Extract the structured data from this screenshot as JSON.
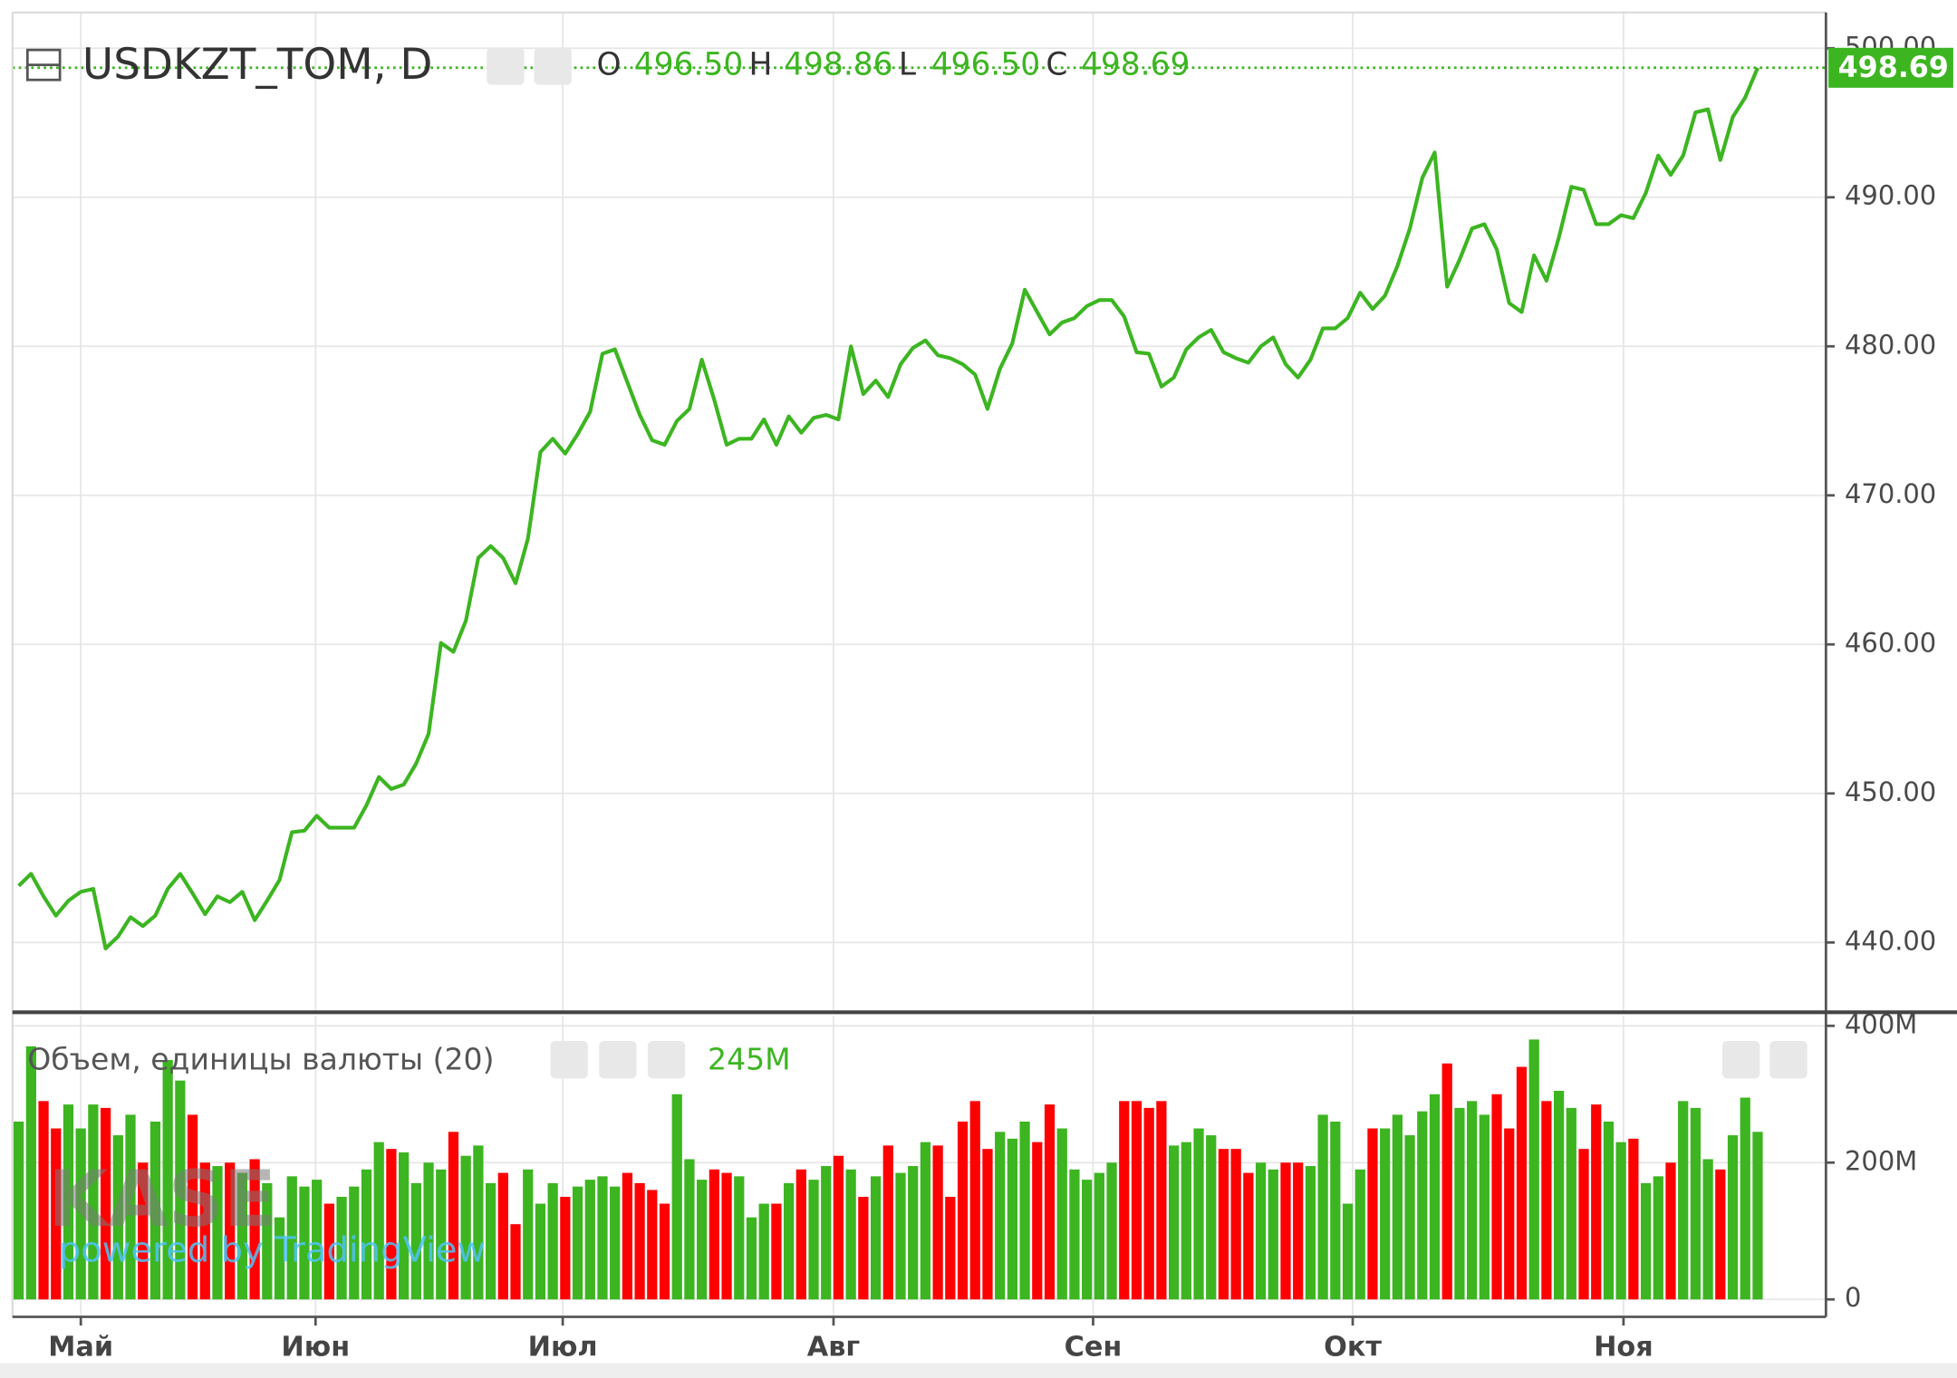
{
  "chart_data": [
    {
      "type": "line",
      "title": "USDKZT_TOM, D",
      "ohlc": [
        {
          "label": "O",
          "value": "496.50"
        },
        {
          "label": "H",
          "value": "498.86"
        },
        {
          "label": "L",
          "value": "496.50"
        },
        {
          "label": "C",
          "value": "498.69"
        }
      ],
      "watermark": "KASE",
      "watermark_sub": "powered by TradingView",
      "color": "#3cb521",
      "values": [
        443.8,
        444.6,
        443.1,
        441.8,
        442.8,
        443.4,
        443.6,
        439.6,
        440.4,
        441.7,
        441.1,
        441.8,
        443.6,
        444.6,
        443.3,
        441.9,
        443.1,
        442.7,
        443.4,
        441.5,
        442.8,
        444.2,
        447.4,
        447.5,
        448.5,
        447.7,
        447.7,
        447.7,
        449.2,
        451.1,
        450.3,
        450.6,
        452.0,
        454.0,
        460.1,
        459.5,
        461.6,
        465.8,
        466.6,
        465.8,
        464.1,
        467.1,
        472.9,
        473.8,
        472.8,
        474.1,
        475.6,
        479.5,
        479.8,
        477.6,
        475.4,
        473.7,
        473.4,
        475.0,
        475.8,
        479.1,
        476.4,
        473.4,
        473.8,
        473.8,
        475.1,
        473.4,
        475.3,
        474.2,
        475.2,
        475.4,
        475.1,
        480.0,
        476.8,
        477.7,
        476.6,
        478.8,
        479.9,
        480.4,
        479.4,
        479.2,
        478.8,
        478.1,
        475.8,
        478.5,
        480.2,
        483.8,
        482.3,
        480.8,
        481.6,
        481.9,
        482.7,
        483.1,
        483.1,
        482.0,
        479.6,
        479.5,
        477.3,
        477.9,
        479.8,
        480.6,
        481.1,
        479.6,
        479.2,
        478.9,
        480.0,
        480.6,
        478.8,
        477.9,
        479.1,
        481.2,
        481.2,
        481.9,
        483.6,
        482.5,
        483.4,
        485.4,
        487.9,
        491.3,
        493.0,
        484.0,
        485.8,
        487.9,
        488.2,
        486.5,
        482.9,
        482.3,
        486.1,
        484.4,
        487.3,
        490.7,
        490.5,
        488.2,
        488.2,
        488.8,
        488.6,
        490.3,
        492.8,
        491.5,
        492.8,
        495.7,
        495.9,
        492.5,
        495.4,
        496.7,
        498.69
      ],
      "xlim": [
        -0.5,
        145.5
      ],
      "xticks": [
        {
          "value": 5.0,
          "label": "Май"
        },
        {
          "value": 23.9,
          "label": "Июн"
        },
        {
          "value": 43.8,
          "label": "Июл"
        },
        {
          "value": 65.6,
          "label": "Авг"
        },
        {
          "value": 86.5,
          "label": "Сен"
        },
        {
          "value": 107.4,
          "label": "Окт"
        },
        {
          "value": 129.2,
          "label": "Ноя"
        }
      ],
      "ylim": [
        435.4,
        502.4
      ],
      "yticks": [
        {
          "value": 440,
          "label": "440.00"
        },
        {
          "value": 450,
          "label": "450.00"
        },
        {
          "value": 460,
          "label": "460.00"
        },
        {
          "value": 470,
          "label": "470.00"
        },
        {
          "value": 480,
          "label": "480.00"
        },
        {
          "value": 490,
          "label": "490.00"
        },
        {
          "value": 500,
          "label": "500.00"
        }
      ],
      "grid": true
    },
    {
      "type": "bar",
      "title": "Объем, единицы валюты (20)",
      "last_value_label": "245M",
      "up_color": "#3cb521",
      "down_color": "#ff0000",
      "values": [
        260,
        370,
        290,
        250,
        285,
        250,
        285,
        280,
        240,
        270,
        200,
        260,
        350,
        320,
        270,
        200,
        195,
        200,
        185,
        205,
        170,
        120,
        180,
        165,
        175,
        140,
        150,
        165,
        190,
        230,
        220,
        215,
        170,
        200,
        190,
        245,
        210,
        225,
        170,
        185,
        110,
        190,
        140,
        170,
        150,
        165,
        175,
        180,
        165,
        185,
        170,
        160,
        140,
        300,
        205,
        175,
        190,
        185,
        180,
        120,
        140,
        140,
        170,
        190,
        175,
        195,
        210,
        190,
        150,
        180,
        225,
        185,
        195,
        230,
        225,
        150,
        260,
        290,
        220,
        245,
        235,
        260,
        230,
        285,
        250,
        190,
        175,
        185,
        200,
        290,
        290,
        280,
        290,
        225,
        230,
        250,
        240,
        220,
        220,
        185,
        200,
        190,
        200,
        200,
        195,
        270,
        260,
        140,
        190,
        250,
        250,
        270,
        240,
        275,
        300,
        345,
        280,
        290,
        270,
        300,
        250,
        340,
        380,
        290,
        305,
        280,
        220,
        285,
        260,
        230,
        235,
        170,
        180,
        200,
        290,
        280,
        205,
        190,
        240,
        295,
        245
      ],
      "ylim": [
        -25.5,
        418
      ],
      "yticks": [
        0,
        {
          "value": 200,
          "label": "200M"
        },
        {
          "value": 400,
          "label": "400M"
        }
      ],
      "grid": true
    }
  ]
}
